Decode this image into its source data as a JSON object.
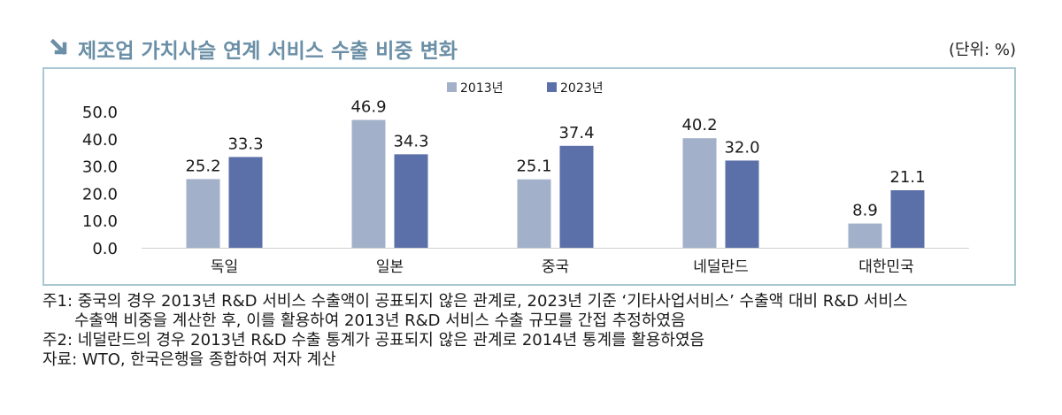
{
  "title": "제조업 가치사슬 연계 서비스 수출 비중 변화",
  "unit": "(단위: %)",
  "colors": {
    "title": "#6b8fa6",
    "frame": "#a9c8d1",
    "series_2013": "#a3b0ca",
    "series_2023": "#5b6fa8"
  },
  "icons": {
    "title": "arrow-down-right-icon"
  },
  "chart_data": {
    "type": "bar",
    "title": "",
    "xlabel": "",
    "ylabel": "",
    "categories": [
      "독일",
      "일본",
      "중국",
      "네덜란드",
      "대한민국"
    ],
    "series": [
      {
        "name": "2013년",
        "values": [
          25.2,
          46.9,
          25.1,
          40.2,
          8.9
        ]
      },
      {
        "name": "2023년",
        "values": [
          33.3,
          34.3,
          37.4,
          32.0,
          21.1
        ]
      }
    ],
    "ylim": [
      0,
      50
    ],
    "yticks": [
      "0.0",
      "10.0",
      "20.0",
      "30.0",
      "40.0",
      "50.0"
    ],
    "data_labels": [
      [
        "25.2",
        "46.9",
        "25.1",
        "40.2",
        "8.9"
      ],
      [
        "33.3",
        "34.3",
        "37.4",
        "32.0",
        "21.1"
      ]
    ],
    "grid": false,
    "legend_position": "top-center"
  },
  "notes": [
    "주1: 중국의 경우 2013년 R&D 서비스 수출액이 공표되지 않은 관계로, 2023년 기준 ‘기타사업서비스’ 수출액 대비 R&D 서비스",
    "수출액 비중을 계산한 후, 이를 활용하여 2013년 R&D 서비스 수출 규모를 간접 추정하였음",
    "주2: 네덜란드의 경우 2013년 R&D 수출 통계가 공표되지 않은 관계로 2014년 통계를 활용하였음",
    "자료: WTO, 한국은행을 종합하여 저자 계산"
  ]
}
